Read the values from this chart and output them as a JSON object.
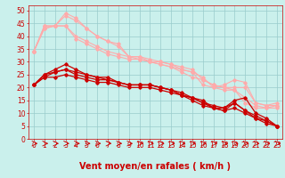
{
  "background_color": "#caf0ec",
  "grid_color": "#99cccc",
  "xlabel": "Vent moyen/en rafales ( km/h )",
  "xlabel_color": "#cc0000",
  "xlabel_fontsize": 7,
  "tick_color": "#cc0000",
  "tick_fontsize": 5.5,
  "ylim": [
    0,
    52
  ],
  "xlim": [
    -0.5,
    23.5
  ],
  "yticks": [
    0,
    5,
    10,
    15,
    20,
    25,
    30,
    35,
    40,
    45,
    50
  ],
  "xticks": [
    0,
    1,
    2,
    3,
    4,
    5,
    6,
    7,
    8,
    9,
    10,
    11,
    12,
    13,
    14,
    15,
    16,
    17,
    18,
    19,
    20,
    21,
    22,
    23
  ],
  "series": [
    {
      "x": [
        0,
        1,
        2,
        3,
        4,
        5,
        6,
        7,
        8,
        9,
        10,
        11,
        12,
        13,
        14,
        15,
        16,
        17,
        18,
        19,
        20,
        21,
        22,
        23
      ],
      "y": [
        34,
        43,
        44,
        49,
        47,
        43,
        40,
        38,
        37,
        32,
        32,
        31,
        30,
        29,
        27,
        26,
        24,
        20,
        21,
        23,
        22,
        14,
        13,
        14
      ],
      "color": "#ffaaaa",
      "linewidth": 0.8,
      "marker": "D",
      "markersize": 1.8
    },
    {
      "x": [
        0,
        1,
        2,
        3,
        4,
        5,
        6,
        7,
        8,
        9,
        10,
        11,
        12,
        13,
        14,
        15,
        16,
        17,
        18,
        19,
        20,
        21,
        22,
        23
      ],
      "y": [
        34,
        43,
        44,
        48,
        46,
        43,
        40,
        38,
        36,
        32,
        32,
        30,
        29,
        28,
        26,
        24,
        23,
        21,
        20,
        20,
        20,
        14,
        13,
        13
      ],
      "color": "#ffaaaa",
      "linewidth": 0.8,
      "marker": "D",
      "markersize": 1.8
    },
    {
      "x": [
        0,
        1,
        2,
        3,
        4,
        5,
        6,
        7,
        8,
        9,
        10,
        11,
        12,
        13,
        14,
        15,
        16,
        17,
        18,
        19,
        20,
        21,
        22,
        23
      ],
      "y": [
        34,
        44,
        44,
        44,
        40,
        38,
        36,
        34,
        33,
        32,
        31,
        30,
        30,
        29,
        28,
        27,
        23,
        21,
        20,
        19,
        16,
        13,
        12,
        13
      ],
      "color": "#ffaaaa",
      "linewidth": 0.8,
      "marker": "D",
      "markersize": 1.8
    },
    {
      "x": [
        0,
        1,
        2,
        3,
        4,
        5,
        6,
        7,
        8,
        9,
        10,
        11,
        12,
        13,
        14,
        15,
        16,
        17,
        18,
        19,
        20,
        21,
        22,
        23
      ],
      "y": [
        34,
        44,
        44,
        44,
        39,
        37,
        35,
        33,
        32,
        31,
        31,
        30,
        29,
        28,
        27,
        26,
        21,
        20,
        19,
        19,
        14,
        12,
        12,
        12
      ],
      "color": "#ffaaaa",
      "linewidth": 0.8,
      "marker": "D",
      "markersize": 1.8
    },
    {
      "x": [
        0,
        1,
        2,
        3,
        4,
        5,
        6,
        7,
        8,
        9,
        10,
        11,
        12,
        13,
        14,
        15,
        16,
        17,
        18,
        19,
        20,
        21,
        22,
        23
      ],
      "y": [
        21,
        25,
        27,
        29,
        27,
        25,
        24,
        24,
        22,
        21,
        21,
        21,
        20,
        19,
        17,
        16,
        15,
        12,
        12,
        15,
        16,
        10,
        8,
        5
      ],
      "color": "#cc0000",
      "linewidth": 0.9,
      "marker": "D",
      "markersize": 1.8
    },
    {
      "x": [
        0,
        1,
        2,
        3,
        4,
        5,
        6,
        7,
        8,
        9,
        10,
        11,
        12,
        13,
        14,
        15,
        16,
        17,
        18,
        19,
        20,
        21,
        22,
        23
      ],
      "y": [
        21,
        25,
        26,
        27,
        25,
        24,
        23,
        23,
        22,
        21,
        21,
        21,
        20,
        19,
        17,
        16,
        14,
        12,
        11,
        14,
        11,
        8,
        7,
        5
      ],
      "color": "#cc0000",
      "linewidth": 0.9,
      "marker": "D",
      "markersize": 1.8
    },
    {
      "x": [
        0,
        1,
        2,
        3,
        4,
        5,
        6,
        7,
        8,
        9,
        10,
        11,
        12,
        13,
        14,
        15,
        16,
        17,
        18,
        19,
        20,
        21,
        22,
        23
      ],
      "y": [
        21,
        24,
        26,
        27,
        26,
        25,
        24,
        23,
        22,
        21,
        21,
        21,
        20,
        19,
        18,
        16,
        14,
        13,
        12,
        14,
        11,
        9,
        7,
        5
      ],
      "color": "#cc0000",
      "linewidth": 0.9,
      "marker": "D",
      "markersize": 1.8
    },
    {
      "x": [
        0,
        1,
        2,
        3,
        4,
        5,
        6,
        7,
        8,
        9,
        10,
        11,
        12,
        13,
        14,
        15,
        16,
        17,
        18,
        19,
        20,
        21,
        22,
        23
      ],
      "y": [
        21,
        24,
        24,
        25,
        24,
        23,
        22,
        22,
        21,
        20,
        20,
        20,
        19,
        18,
        17,
        15,
        13,
        12,
        11,
        12,
        10,
        8,
        6,
        5
      ],
      "color": "#cc0000",
      "linewidth": 0.9,
      "marker": "D",
      "markersize": 1.8
    }
  ]
}
